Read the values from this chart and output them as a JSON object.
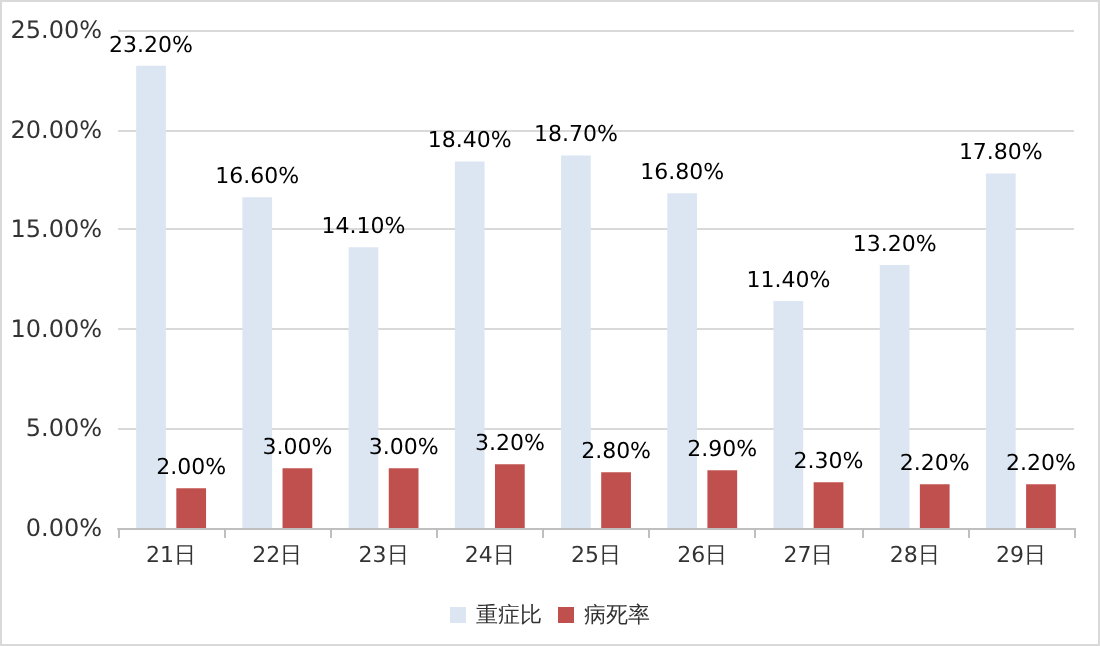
{
  "chart_data": {
    "type": "bar",
    "categories": [
      "21日",
      "22日",
      "23日",
      "24日",
      "25日",
      "26日",
      "27日",
      "28日",
      "29日"
    ],
    "series": [
      {
        "name": "重症比",
        "color": "#dce6f2",
        "values": [
          23.2,
          16.6,
          14.1,
          18.4,
          18.7,
          16.8,
          11.4,
          13.2,
          17.8
        ],
        "value_labels": [
          "23.20%",
          "16.60%",
          "14.10%",
          "18.40%",
          "18.70%",
          "16.80%",
          "11.40%",
          "13.20%",
          "17.80%"
        ]
      },
      {
        "name": "病死率",
        "color": "#c0504d",
        "values": [
          2.0,
          3.0,
          3.0,
          3.2,
          2.8,
          2.9,
          2.3,
          2.2,
          2.2
        ],
        "value_labels": [
          "2.00%",
          "3.00%",
          "3.00%",
          "3.20%",
          "2.80%",
          "2.90%",
          "2.30%",
          "2.20%",
          "2.20%"
        ]
      }
    ],
    "ylim": [
      0,
      25
    ],
    "yticks": [
      {
        "value": 0,
        "label": "0.00%"
      },
      {
        "value": 5,
        "label": "5.00%"
      },
      {
        "value": 10,
        "label": "10.00%"
      },
      {
        "value": 15,
        "label": "15.00%"
      },
      {
        "value": 20,
        "label": "20.00%"
      },
      {
        "value": 25,
        "label": "25.00%"
      }
    ],
    "grid": "y",
    "legend": "bottom"
  }
}
